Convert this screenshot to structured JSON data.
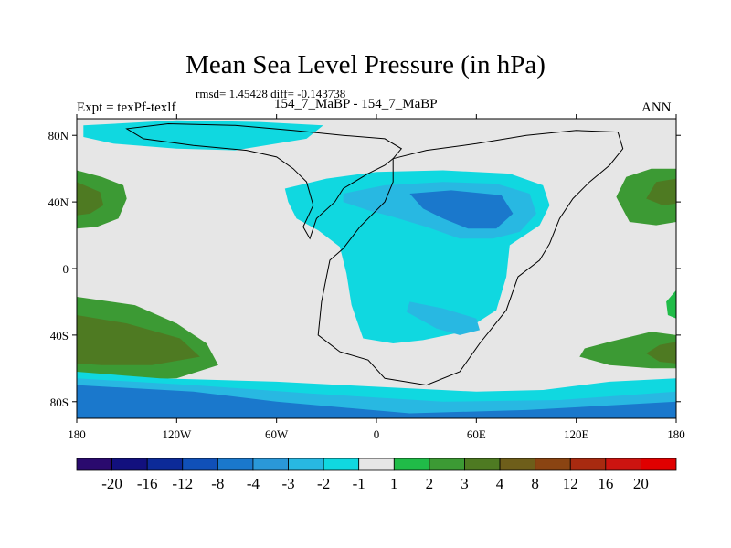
{
  "title": "Mean Sea Level Pressure (in hPa)",
  "stats": "rmsd= 1.45428 diff= -0.143738",
  "left_label": "Expt = texPf-texlf",
  "center_label": "154_7_MaBP - 154_7_MaBP",
  "right_label": "ANN",
  "chart_data": {
    "type": "filled-contour-map",
    "variable": "Mean Sea Level Pressure difference",
    "units": "hPa",
    "projection": "cylindrical equidistant",
    "lon_range": [
      -180,
      180
    ],
    "lat_range": [
      -90,
      90
    ],
    "x_ticks": [
      {
        "lon": -180,
        "label": "180"
      },
      {
        "lon": -120,
        "label": "120W"
      },
      {
        "lon": -60,
        "label": "60W"
      },
      {
        "lon": 0,
        "label": "0"
      },
      {
        "lon": 60,
        "label": "60E"
      },
      {
        "lon": 120,
        "label": "120E"
      },
      {
        "lon": 180,
        "label": "180"
      }
    ],
    "y_ticks": [
      {
        "lat": 80,
        "label": "80N"
      },
      {
        "lat": 40,
        "label": "40N"
      },
      {
        "lat": 0,
        "label": "0"
      },
      {
        "lat": -40,
        "label": "40S"
      },
      {
        "lat": -80,
        "label": "80S"
      }
    ],
    "contour_levels": [
      "-20",
      "-16",
      "-12",
      "-8",
      "-4",
      "-3",
      "-2",
      "-1",
      "1",
      "2",
      "3",
      "4",
      "8",
      "12",
      "16",
      "20"
    ],
    "colorbar_colors": [
      "#2a0a6e",
      "#12107e",
      "#0c2a98",
      "#1050b8",
      "#1a78cc",
      "#2a98d8",
      "#28b8e2",
      "#10d8e0",
      "#e6e6e6",
      "#20bc48",
      "#3c9a34",
      "#4e7a22",
      "#6e5e1a",
      "#8a4412",
      "#a82a10",
      "#cc1410",
      "#e00000"
    ],
    "regions": [
      {
        "name": "north-pacific-high",
        "range": "2 to 3 hPa",
        "color": "#3c9a34",
        "points": [
          [
            -180,
            59
          ],
          [
            -165,
            55
          ],
          [
            -152,
            50
          ],
          [
            -150,
            42
          ],
          [
            -155,
            30
          ],
          [
            -168,
            25
          ],
          [
            -180,
            24
          ]
        ]
      },
      {
        "name": "north-pacific-high-core",
        "range": "3 to 4 hPa",
        "color": "#4e7a22",
        "points": [
          [
            -180,
            52
          ],
          [
            -166,
            46
          ],
          [
            -164,
            38
          ],
          [
            -172,
            33
          ],
          [
            -180,
            32
          ]
        ]
      },
      {
        "name": "south-pacific-high",
        "range": "2 to 3 hPa",
        "color": "#3c9a34",
        "points": [
          [
            -180,
            -17
          ],
          [
            -145,
            -22
          ],
          [
            -120,
            -33
          ],
          [
            -102,
            -45
          ],
          [
            -95,
            -58
          ],
          [
            -120,
            -66
          ],
          [
            -160,
            -67
          ],
          [
            -180,
            -66
          ]
        ]
      },
      {
        "name": "south-pacific-high-core",
        "range": "3 to 4 hPa",
        "color": "#4e7a22",
        "points": [
          [
            -180,
            -28
          ],
          [
            -150,
            -33
          ],
          [
            -118,
            -42
          ],
          [
            -106,
            -53
          ],
          [
            -135,
            -58
          ],
          [
            -165,
            -58
          ],
          [
            -180,
            -57
          ]
        ]
      },
      {
        "name": "north-atlantic-high",
        "range": "2 to 3 hPa",
        "color": "#3c9a34",
        "points": [
          [
            180,
            60
          ],
          [
            165,
            60
          ],
          [
            150,
            55
          ],
          [
            144,
            43
          ],
          [
            152,
            28
          ],
          [
            168,
            26
          ],
          [
            180,
            28
          ]
        ]
      },
      {
        "name": "north-atlantic-high-core",
        "range": "3 to 4 hPa",
        "color": "#4e7a22",
        "points": [
          [
            180,
            54
          ],
          [
            168,
            52
          ],
          [
            162,
            42
          ],
          [
            172,
            38
          ],
          [
            180,
            39
          ]
        ]
      },
      {
        "name": "south-atlantic-high",
        "range": "2 to 3 hPa",
        "color": "#3c9a34",
        "points": [
          [
            180,
            -40
          ],
          [
            165,
            -38
          ],
          [
            140,
            -44
          ],
          [
            125,
            -48
          ],
          [
            122,
            -53
          ],
          [
            140,
            -58
          ],
          [
            165,
            -60
          ],
          [
            180,
            -60
          ]
        ]
      },
      {
        "name": "south-atlantic-high-core",
        "range": "3 to 4 hPa",
        "color": "#4e7a22",
        "points": [
          [
            180,
            -44
          ],
          [
            170,
            -46
          ],
          [
            162,
            -51
          ],
          [
            170,
            -56
          ],
          [
            180,
            -57
          ]
        ]
      },
      {
        "name": "east-coast-high-south",
        "range": "1 to 2 hPa",
        "color": "#20bc48",
        "points": [
          [
            180,
            -13
          ],
          [
            174,
            -20
          ],
          [
            175,
            -28
          ],
          [
            180,
            -30
          ]
        ]
      },
      {
        "name": "arctic-low",
        "range": "-2 to -1 hPa",
        "color": "#10d8e0",
        "points": [
          [
            -176,
            86
          ],
          [
            -120,
            89
          ],
          [
            -70,
            88
          ],
          [
            -32,
            86
          ],
          [
            -42,
            78
          ],
          [
            -85,
            71
          ],
          [
            -120,
            72
          ],
          [
            -158,
            75
          ],
          [
            -176,
            79
          ]
        ]
      },
      {
        "name": "central-low",
        "range": "-2 to -1 hPa",
        "color": "#10d8e0",
        "points": [
          [
            -55,
            48
          ],
          [
            -30,
            54
          ],
          [
            0,
            58
          ],
          [
            40,
            59
          ],
          [
            80,
            57
          ],
          [
            100,
            50
          ],
          [
            104,
            38
          ],
          [
            98,
            26
          ],
          [
            80,
            14
          ],
          [
            78,
            -5
          ],
          [
            72,
            -25
          ],
          [
            52,
            -38
          ],
          [
            28,
            -43
          ],
          [
            10,
            -45
          ],
          [
            -8,
            -42
          ],
          [
            -15,
            -22
          ],
          [
            -18,
            -3
          ],
          [
            -22,
            13
          ],
          [
            -35,
            23
          ],
          [
            -48,
            30
          ],
          [
            -53,
            40
          ]
        ]
      },
      {
        "name": "central-low-inner",
        "range": "-3 to -2 hPa",
        "color": "#28b8e2",
        "points": [
          [
            -20,
            45
          ],
          [
            5,
            50
          ],
          [
            40,
            52
          ],
          [
            72,
            51
          ],
          [
            92,
            45
          ],
          [
            96,
            33
          ],
          [
            86,
            22
          ],
          [
            70,
            18
          ],
          [
            50,
            18
          ],
          [
            30,
            25
          ],
          [
            10,
            31
          ],
          [
            -5,
            35
          ],
          [
            -20,
            40
          ]
        ]
      },
      {
        "name": "central-low-core",
        "range": "-4 to -3 hPa",
        "color": "#1a78cc",
        "points": [
          [
            20,
            45
          ],
          [
            45,
            47
          ],
          [
            75,
            44
          ],
          [
            82,
            33
          ],
          [
            72,
            24
          ],
          [
            55,
            24
          ],
          [
            40,
            30
          ],
          [
            28,
            36
          ]
        ]
      },
      {
        "name": "southern-low",
        "range": "-3 to -2 hPa",
        "color": "#28b8e2",
        "points": [
          [
            20,
            -20
          ],
          [
            40,
            -24
          ],
          [
            60,
            -30
          ],
          [
            62,
            -37
          ],
          [
            50,
            -40
          ],
          [
            36,
            -36
          ],
          [
            18,
            -26
          ]
        ]
      },
      {
        "name": "antarctic-low-band",
        "range": "-2 to -1 hPa",
        "color": "#10d8e0",
        "points": [
          [
            -180,
            -62
          ],
          [
            -130,
            -66
          ],
          [
            -60,
            -68
          ],
          [
            -20,
            -70
          ],
          [
            20,
            -72
          ],
          [
            60,
            -74
          ],
          [
            100,
            -73
          ],
          [
            140,
            -68
          ],
          [
            180,
            -66
          ],
          [
            180,
            -90
          ],
          [
            -180,
            -90
          ]
        ]
      },
      {
        "name": "antarctic-low-band-inner",
        "range": "-3 to -2 hPa",
        "color": "#28b8e2",
        "points": [
          [
            -180,
            -66
          ],
          [
            -110,
            -70
          ],
          [
            -40,
            -75
          ],
          [
            40,
            -80
          ],
          [
            110,
            -79
          ],
          [
            180,
            -74
          ],
          [
            180,
            -90
          ],
          [
            -180,
            -90
          ]
        ]
      },
      {
        "name": "antarctic-low-band-core",
        "range": "-4 to -3 hPa",
        "color": "#1a78cc",
        "points": [
          [
            -180,
            -70
          ],
          [
            -110,
            -74
          ],
          [
            -60,
            -80
          ],
          [
            20,
            -87
          ],
          [
            90,
            -85
          ],
          [
            180,
            -80
          ],
          [
            180,
            -90
          ],
          [
            -180,
            -90
          ]
        ]
      }
    ],
    "coastlines": [
      {
        "name": "western-continent",
        "points": [
          [
            -40,
            18
          ],
          [
            -36,
            30
          ],
          [
            -25,
            40
          ],
          [
            -20,
            48
          ],
          [
            -5,
            57
          ],
          [
            5,
            62
          ],
          [
            10,
            66
          ],
          [
            15,
            72
          ],
          [
            5,
            78
          ],
          [
            -20,
            80
          ],
          [
            -50,
            83
          ],
          [
            -85,
            86
          ],
          [
            -125,
            87
          ],
          [
            -150,
            84
          ],
          [
            -140,
            78
          ],
          [
            -110,
            74
          ],
          [
            -78,
            71
          ],
          [
            -60,
            67
          ],
          [
            -50,
            60
          ],
          [
            -42,
            52
          ],
          [
            -38,
            38
          ],
          [
            -44,
            25
          ],
          [
            -40,
            18
          ]
        ]
      },
      {
        "name": "eastern-continent",
        "points": [
          [
            10,
            66
          ],
          [
            30,
            71
          ],
          [
            60,
            75
          ],
          [
            90,
            80
          ],
          [
            120,
            83
          ],
          [
            145,
            82
          ],
          [
            148,
            72
          ],
          [
            140,
            62
          ],
          [
            128,
            52
          ],
          [
            118,
            42
          ],
          [
            110,
            30
          ],
          [
            104,
            15
          ],
          [
            98,
            5
          ],
          [
            85,
            -5
          ],
          [
            78,
            -25
          ],
          [
            62,
            -45
          ],
          [
            50,
            -62
          ],
          [
            30,
            -70
          ],
          [
            5,
            -66
          ],
          [
            -5,
            -55
          ],
          [
            -22,
            -50
          ],
          [
            -35,
            -40
          ],
          [
            -33,
            -20
          ],
          [
            -30,
            -5
          ],
          [
            -28,
            5
          ],
          [
            -20,
            12
          ],
          [
            -10,
            25
          ],
          [
            5,
            40
          ],
          [
            10,
            52
          ],
          [
            10,
            66
          ]
        ]
      }
    ]
  }
}
